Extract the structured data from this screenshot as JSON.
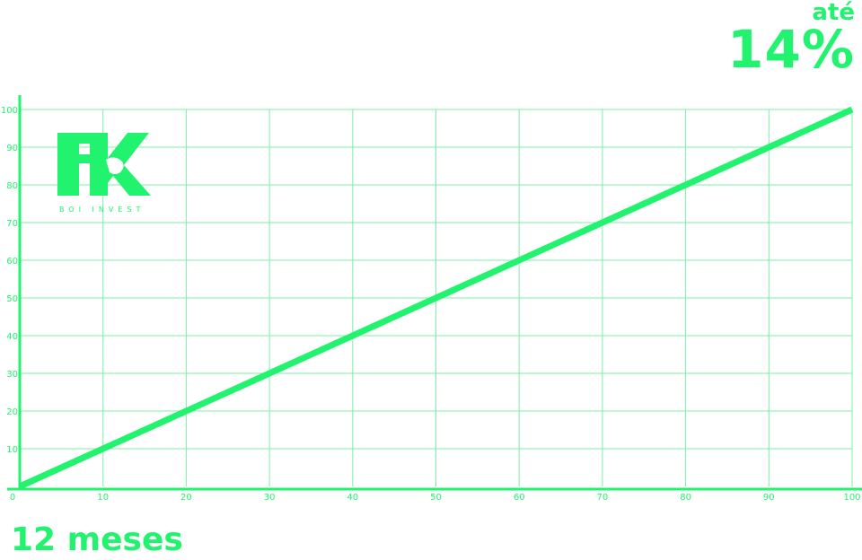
{
  "headline": {
    "pre": "até",
    "value": "14%"
  },
  "footer": {
    "label": "12 meses"
  },
  "logo": {
    "text": "BOI INVEST"
  },
  "colors": {
    "accent": "#22f36e",
    "grid": "#7af0a6",
    "background": "#ffffff"
  },
  "chart_data": {
    "type": "line",
    "title": "",
    "xlabel": "",
    "ylabel": "",
    "xlim": [
      0,
      100
    ],
    "ylim": [
      0,
      100
    ],
    "x_ticks": [
      0,
      10,
      20,
      30,
      40,
      50,
      60,
      70,
      80,
      90,
      100
    ],
    "y_ticks": [
      10,
      20,
      30,
      40,
      50,
      60,
      70,
      80,
      90,
      100
    ],
    "grid": true,
    "series": [
      {
        "x": [
          0,
          100
        ],
        "y": [
          0,
          100
        ]
      }
    ]
  }
}
